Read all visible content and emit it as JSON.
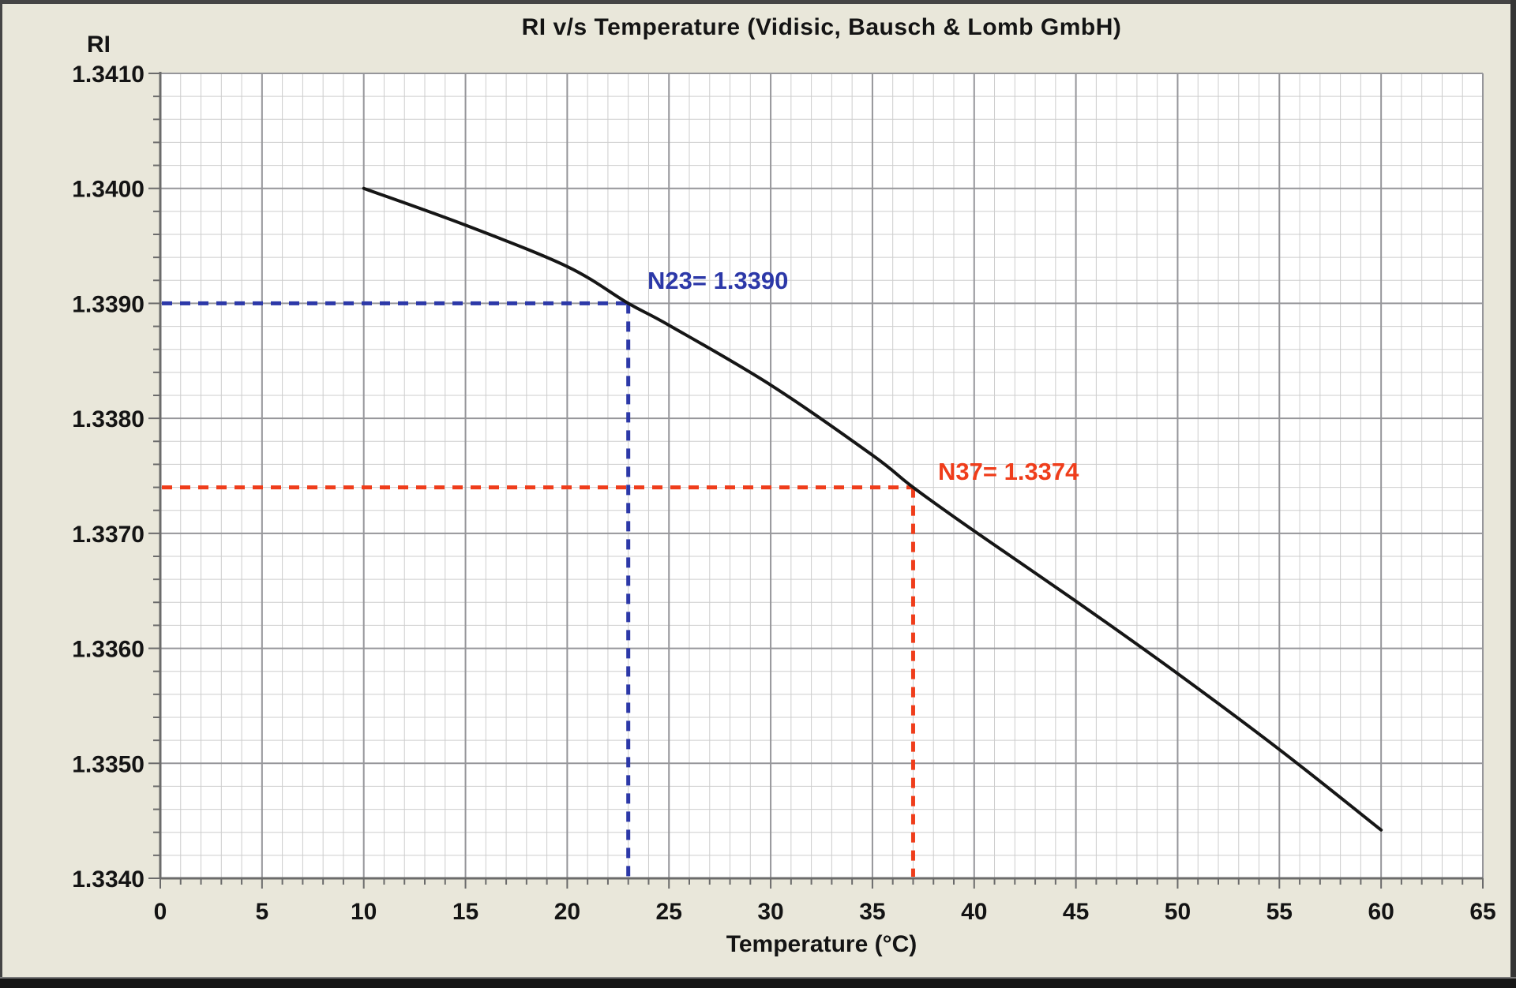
{
  "frame": {
    "panel_background": "#e9e7da",
    "border_top_color": "#454545",
    "border_bottom_color": "#161616"
  },
  "chart_data": {
    "type": "line",
    "title": "RI v/s Temperature (Vidisic, Bausch & Lomb GmbH)",
    "xlabel": "Temperature (°C)",
    "ylabel": "RI",
    "xlim": [
      0,
      65
    ],
    "ylim": [
      1.334,
      1.341
    ],
    "x_major_step": 5,
    "x_minor_step": 1,
    "y_major_step": 0.001,
    "y_minor_step": 0.0002,
    "grid": {
      "minor_on": true,
      "major_on": true,
      "minor_color": "#cdcdcd",
      "major_color": "#96969a",
      "axis_color": "#6b6b6b"
    },
    "x_ticks": [
      {
        "label": "0",
        "value": 0
      },
      {
        "label": "5",
        "value": 5
      },
      {
        "label": "10",
        "value": 10
      },
      {
        "label": "15",
        "value": 15
      },
      {
        "label": "20",
        "value": 20
      },
      {
        "label": "25",
        "value": 25
      },
      {
        "label": "30",
        "value": 30
      },
      {
        "label": "35",
        "value": 35
      },
      {
        "label": "40",
        "value": 40
      },
      {
        "label": "45",
        "value": 45
      },
      {
        "label": "50",
        "value": 50
      },
      {
        "label": "55",
        "value": 55
      },
      {
        "label": "60",
        "value": 60
      },
      {
        "label": "65",
        "value": 65
      }
    ],
    "y_ticks": [
      {
        "label": "1.3410",
        "value": 1.341
      },
      {
        "label": "1.3400",
        "value": 1.34
      },
      {
        "label": "1.3390",
        "value": 1.339
      },
      {
        "label": "1.3380",
        "value": 1.338
      },
      {
        "label": "1.3370",
        "value": 1.337
      },
      {
        "label": "1.3360",
        "value": 1.336
      },
      {
        "label": "1.3350",
        "value": 1.335
      },
      {
        "label": "1.3340",
        "value": 1.334
      }
    ],
    "series": [
      {
        "name": "RI vs Temperature curve",
        "color": "#161616",
        "points": [
          [
            10,
            1.34
          ],
          [
            15,
            1.33968
          ],
          [
            20,
            1.33932
          ],
          [
            23,
            1.339
          ],
          [
            25,
            1.33881
          ],
          [
            30,
            1.33829
          ],
          [
            35,
            1.33768
          ],
          [
            37,
            1.3374
          ],
          [
            40,
            1.33702
          ],
          [
            45,
            1.33641
          ],
          [
            50,
            1.33578
          ],
          [
            55,
            1.33512
          ],
          [
            60,
            1.33442
          ]
        ]
      }
    ],
    "annotations": [
      {
        "id": "N23",
        "label": "N23= 1.3390",
        "t": 23,
        "ri": 1.339,
        "color": "#2c38a8"
      },
      {
        "id": "N37",
        "label": "N37= 1.3374",
        "t": 37,
        "ri": 1.3374,
        "color": "#ef3d1b"
      }
    ],
    "legend_position": "none"
  }
}
